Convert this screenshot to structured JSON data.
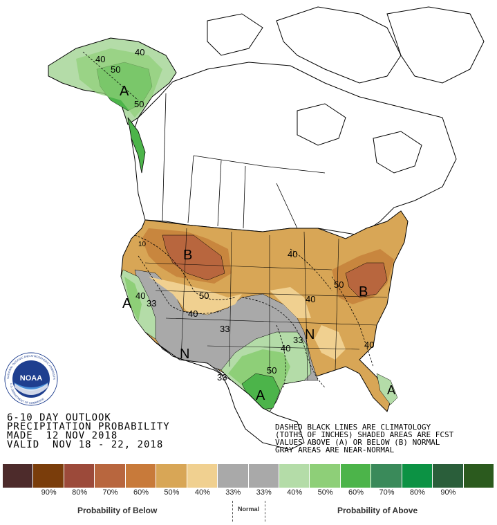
{
  "header": {
    "line1": "6-10 DAY OUTLOOK",
    "line2": "PRECIPITATION PROBABILITY",
    "line3": "MADE  12 NOV 2018",
    "line4": "VALID  NOV 18 - 22, 2018"
  },
  "notes": {
    "line1": "DASHED BLACK LINES ARE CLIMATOLOGY",
    "line2": "(TOTHS OF INCHES) SHADED AREAS ARE FCST",
    "line3": "VALUES ABOVE (A) OR BELOW (B) NORMAL",
    "line4": "GRAY AREAS ARE NEAR-NORMAL"
  },
  "map_labels": {
    "alaska_40": "40",
    "alaska_40b": "40",
    "alaska_50": "50",
    "alaska_A": "A",
    "alaska_50b": "50",
    "nw_B": "B",
    "nw_10": "10",
    "west_A": "A",
    "west_40": "40",
    "west_33": "33",
    "mid_50": "50",
    "mid_40": "40",
    "mid_33": "33",
    "n_N": "N",
    "cen_33": "33",
    "ne_40": "40",
    "ne_50": "50",
    "ne_B": "B",
    "cen_40": "40",
    "se_33": "33",
    "se_N": "N",
    "sc_40": "40",
    "sc_50": "50",
    "sw_33": "33",
    "tx_A": "A",
    "se_40": "40",
    "fl_A": "A"
  },
  "legend": {
    "colors": [
      "#4d2b2b",
      "#7a3d0b",
      "#9c4a3a",
      "#b8663e",
      "#c87a3a",
      "#d8a656",
      "#f0d090",
      "#a9a9a9",
      "#a9a9a9",
      "#b4dca8",
      "#8ecf78",
      "#4cb44a",
      "#3a8a5a",
      "#0c9244",
      "#2a5e3a",
      "#2b5a1e"
    ],
    "labels": [
      "90%",
      "80%",
      "70%",
      "60%",
      "50%",
      "40%",
      "33%",
      "33%",
      "40%",
      "50%",
      "60%",
      "70%",
      "80%",
      "90%"
    ],
    "below_caption": "Probability of Below",
    "normal_caption": "Normal",
    "above_caption": "Probability of Above"
  },
  "logo": {
    "text": "NOAA",
    "ring_top": "NATIONAL OCEANIC AND ATMOSPHERIC ADMINISTRATION",
    "ring_bottom": "U.S. DEPARTMENT OF COMMERCE"
  },
  "colors": {
    "above_light": "#b4dca8",
    "above_mid": "#8ecf78",
    "above_dark": "#4cb44a",
    "below_33": "#f0d090",
    "below_40": "#d8a656",
    "below_50": "#c8863e",
    "below_60": "#b8663e",
    "normal": "#a9a9a9"
  }
}
